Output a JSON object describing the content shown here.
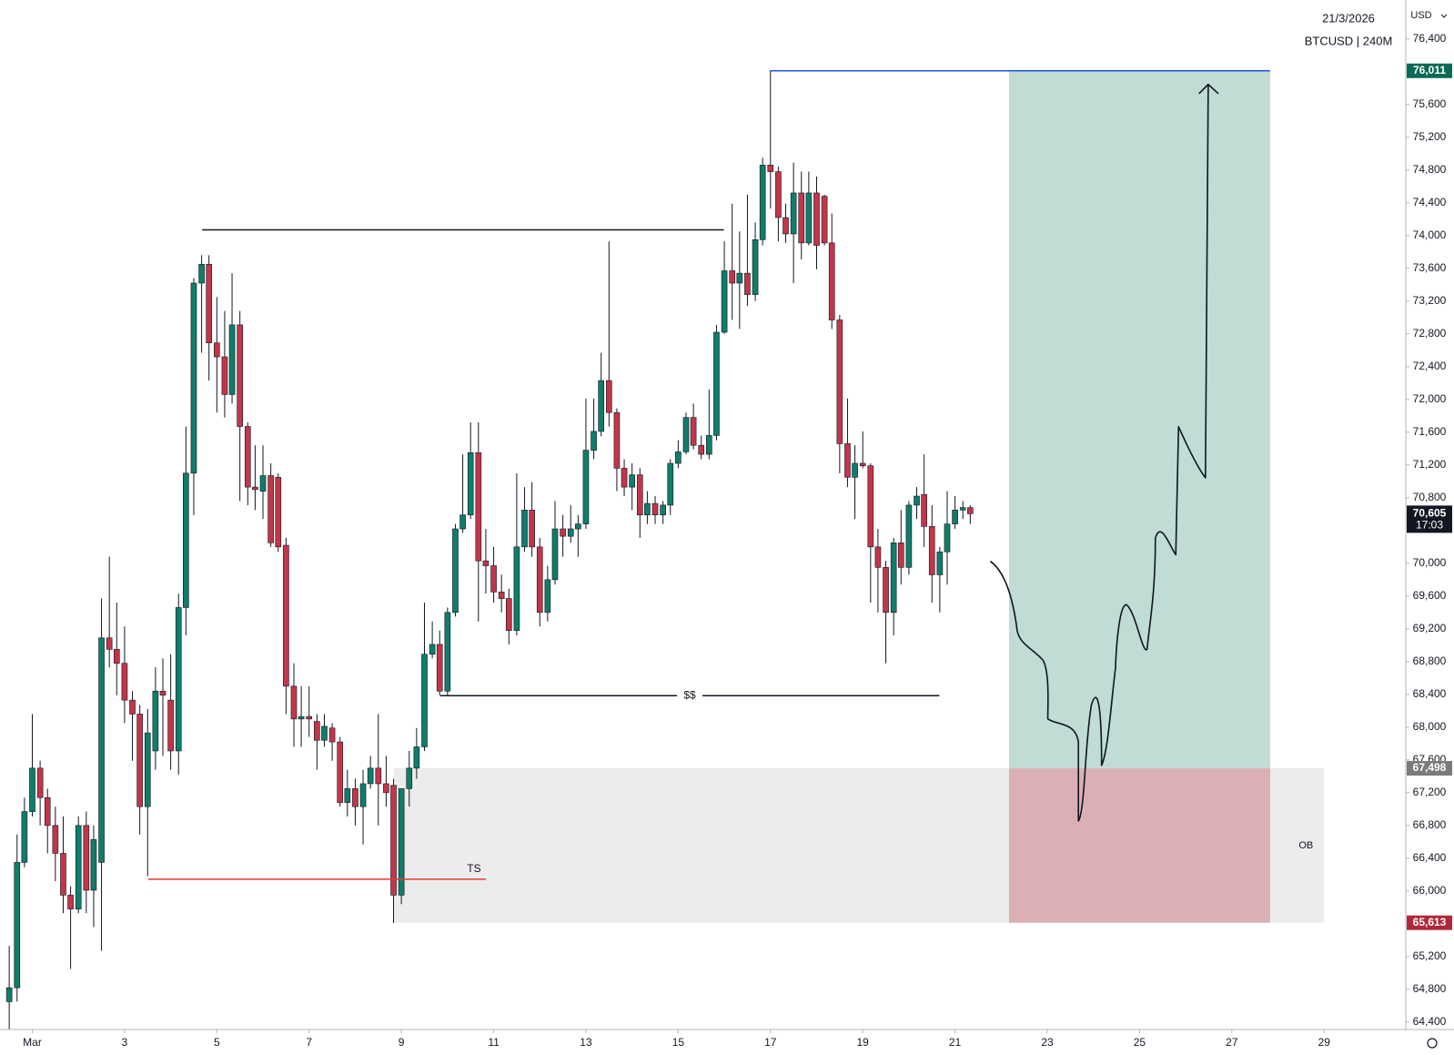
{
  "chart_data": {
    "type": "candlestick",
    "date_label": "21/3/2026",
    "symbol_label": "BTCUSD | 240M",
    "currency": "USD",
    "up_color": "#0f7d6a",
    "down_color": "#c2364a",
    "x": [
      0.5,
      0.67,
      0.83,
      1,
      1.17,
      1.33,
      1.5,
      1.67,
      1.83,
      2,
      2.17,
      2.33,
      2.5,
      2.67,
      2.83,
      3,
      3.17,
      3.33,
      3.5,
      3.67,
      3.83,
      4,
      4.17,
      4.33,
      4.5,
      4.67,
      4.83,
      5,
      5.17,
      5.33,
      5.5,
      5.67,
      5.83,
      6,
      6.17,
      6.33,
      6.5,
      6.67,
      6.83,
      7,
      7.17,
      7.33,
      7.5,
      7.67,
      7.83,
      8,
      8.17,
      8.33,
      8.5,
      8.67,
      8.83,
      9,
      9.17,
      9.33,
      9.5,
      9.67,
      9.83,
      10,
      10.17,
      10.33,
      10.5,
      10.67,
      10.83,
      11,
      11.17,
      11.33,
      11.5,
      11.67,
      11.83,
      12,
      12.17,
      12.33,
      12.5,
      12.67,
      12.83,
      13,
      13.17,
      13.33,
      13.5,
      13.67,
      13.83,
      14,
      14.17,
      14.33,
      14.5,
      14.67,
      14.83,
      15,
      15.17,
      15.33,
      15.5,
      15.67,
      15.83,
      16,
      16.17,
      16.33,
      16.5,
      16.67,
      16.83,
      17,
      17.17,
      17.33,
      17.5,
      17.67,
      17.83,
      18,
      18.17,
      18.33,
      18.5,
      18.67,
      18.83,
      19,
      19.17,
      19.33,
      19.5,
      19.67,
      19.83,
      20,
      20.17,
      20.33,
      20.5,
      20.67,
      20.83,
      21,
      21.17,
      21.33
    ],
    "open": [
      64650,
      64820,
      66350,
      66970,
      67500,
      67140,
      66800,
      66460,
      65950,
      65780,
      66800,
      66010,
      66350,
      69090,
      68950,
      68780,
      68330,
      68160,
      67030,
      67710,
      68440,
      68330,
      67710,
      69460,
      71100,
      73420,
      73650,
      72690,
      72520,
      72060,
      72910,
      71670,
      70930,
      70880,
      71070,
      71050,
      70220,
      68500,
      68100,
      68130,
      68070,
      67840,
      67990,
      67820,
      67080,
      67250,
      67030,
      67310,
      67500,
      67310,
      67290,
      65950,
      67250,
      67500,
      67760,
      68890,
      69010,
      68440,
      69400,
      70420,
      70590,
      71350,
      70030,
      69970,
      69650,
      69570,
      69180,
      70200,
      70650,
      70200,
      69400,
      69800,
      70420,
      70330,
      70420,
      70480,
      71380,
      71610,
      72230,
      71840,
      71160,
      70930,
      71080,
      70590,
      70730,
      70590,
      70710,
      71220,
      71360,
      71780,
      71440,
      71330,
      71560,
      72820,
      73570,
      73420,
      73540,
      73280,
      73950,
      74860,
      74780,
      74220,
      74020,
      74520,
      73910,
      74520,
      74480,
      73910,
      72970,
      71460,
      71050,
      71220,
      71190,
      70200,
      69950,
      69400,
      70250,
      69950,
      70710,
      70840,
      70450,
      69860,
      70140,
      70480,
      70650,
      70680
    ],
    "high": [
      65330,
      66690,
      67140,
      68160,
      67590,
      67250,
      67030,
      66910,
      66060,
      66910,
      66970,
      66800,
      69570,
      70080,
      69520,
      69230,
      68440,
      68270,
      68220,
      68730,
      68840,
      68890,
      69630,
      71670,
      73480,
      73760,
      73760,
      73250,
      73080,
      73540,
      73080,
      71720,
      71440,
      71440,
      71220,
      71100,
      70310,
      68780,
      68500,
      68500,
      68160,
      68160,
      68050,
      67880,
      67480,
      67370,
      67480,
      67650,
      68160,
      67650,
      67370,
      67250,
      67710,
      67990,
      69520,
      69290,
      69180,
      69460,
      70480,
      71330,
      71720,
      71720,
      70420,
      70200,
      69860,
      69690,
      71100,
      70930,
      70990,
      70310,
      69970,
      70760,
      70590,
      70710,
      70590,
      72010,
      72010,
      72570,
      73930,
      71890,
      71270,
      71220,
      71160,
      70880,
      70820,
      70760,
      71270,
      71500,
      71840,
      71950,
      71560,
      72120,
      72910,
      73930,
      74390,
      74050,
      74500,
      74160,
      74950,
      76011,
      74840,
      74390,
      74890,
      74780,
      74780,
      74720,
      74500,
      74270,
      73030,
      72010,
      71440,
      71610,
      71220,
      70420,
      70030,
      70310,
      70650,
      70760,
      70930,
      71330,
      70710,
      70200,
      70880,
      70820,
      70760,
      70710
    ],
    "low": [
      64310,
      64650,
      66290,
      66910,
      66800,
      66460,
      66120,
      65730,
      65050,
      65730,
      65730,
      65560,
      65270,
      68730,
      68390,
      68050,
      67590,
      66690,
      66180,
      67480,
      67650,
      67480,
      67420,
      69120,
      70590,
      72570,
      72230,
      71840,
      71780,
      71950,
      70760,
      70710,
      70650,
      70540,
      70200,
      70140,
      68160,
      67760,
      67760,
      67880,
      67480,
      67760,
      67590,
      67030,
      66910,
      66800,
      66570,
      67250,
      66800,
      67030,
      65610,
      65840,
      67030,
      67370,
      67710,
      68840,
      68390,
      68390,
      69350,
      70370,
      70540,
      69290,
      69630,
      69520,
      69400,
      69010,
      69120,
      70140,
      70080,
      69230,
      69290,
      69740,
      70080,
      70250,
      70080,
      70420,
      71270,
      71550,
      71670,
      70880,
      70820,
      70650,
      70310,
      70480,
      70480,
      70480,
      70590,
      71160,
      71330,
      71390,
      71270,
      71270,
      71500,
      72800,
      72970,
      72860,
      73140,
      73200,
      73880,
      74330,
      73930,
      73910,
      73420,
      73710,
      73880,
      73590,
      73880,
      72860,
      71100,
      70930,
      70540,
      71160,
      69520,
      69400,
      68780,
      69120,
      69740,
      69860,
      70540,
      70200,
      69520,
      69400,
      69740,
      70420,
      70540,
      70480
    ],
    "close": [
      64820,
      66350,
      66970,
      67500,
      67140,
      66800,
      66460,
      65950,
      65780,
      66800,
      66010,
      66630,
      69090,
      68950,
      68780,
      68330,
      68160,
      67030,
      67930,
      68440,
      68390,
      67710,
      69460,
      71100,
      73420,
      73650,
      72690,
      72520,
      72060,
      72910,
      71670,
      70930,
      70900,
      71070,
      70250,
      70200,
      68500,
      68100,
      68130,
      68100,
      67840,
      68010,
      67820,
      67080,
      67250,
      67030,
      67310,
      67500,
      67310,
      67200,
      65950,
      67250,
      67500,
      67760,
      68890,
      69010,
      68440,
      69400,
      70420,
      70590,
      71350,
      70030,
      69970,
      69650,
      69570,
      69180,
      70200,
      70650,
      70200,
      69400,
      69800,
      70420,
      70330,
      70420,
      70480,
      71380,
      71610,
      72230,
      71840,
      71160,
      70930,
      71080,
      70590,
      70730,
      70590,
      70710,
      71220,
      71360,
      71780,
      71440,
      71330,
      71560,
      72820,
      73570,
      73420,
      73540,
      73280,
      73950,
      74860,
      74780,
      74220,
      74020,
      74520,
      73910,
      74520,
      73880,
      73910,
      72970,
      71460,
      71050,
      71220,
      71190,
      70200,
      69950,
      69400,
      70250,
      69950,
      70710,
      70820,
      70450,
      69860,
      70140,
      70480,
      70650,
      70680,
      70605
    ],
    "xlim": [
      0.3,
      30.77
    ],
    "xticks": [
      {
        "value": 1,
        "label": "Mar"
      },
      3,
      5,
      7,
      9,
      11,
      13,
      15,
      17,
      19,
      21,
      23,
      25,
      27,
      29
    ],
    "ylim": [
      64310,
      76875
    ],
    "yticks": [
      {
        "value": 64400,
        "label": "64,400"
      },
      {
        "value": 64800,
        "label": "64,800"
      },
      {
        "value": 65200,
        "label": "65,200"
      },
      {
        "value": 66000,
        "label": "66,000"
      },
      {
        "value": 66400,
        "label": "66,400"
      },
      {
        "value": 66800,
        "label": "66,800"
      },
      {
        "value": 67200,
        "label": "67,200"
      },
      {
        "value": 67600,
        "label": "67,600"
      },
      {
        "value": 68000,
        "label": "68,000"
      },
      {
        "value": 68400,
        "label": "68,400"
      },
      {
        "value": 68800,
        "label": "68,800"
      },
      {
        "value": 69200,
        "label": "69,200"
      },
      {
        "value": 69600,
        "label": "69,600"
      },
      {
        "value": 70000,
        "label": "70,000"
      },
      {
        "value": 70800,
        "label": "70,800"
      },
      {
        "value": 71200,
        "label": "71,200"
      },
      {
        "value": 71600,
        "label": "71,600"
      },
      {
        "value": 72000,
        "label": "72,000"
      },
      {
        "value": 72400,
        "label": "72,400"
      },
      {
        "value": 72800,
        "label": "72,800"
      },
      {
        "value": 73200,
        "label": "73,200"
      },
      {
        "value": 73600,
        "label": "73,600"
      },
      {
        "value": 74000,
        "label": "74,000"
      },
      {
        "value": 74400,
        "label": "74,400"
      },
      {
        "value": 74800,
        "label": "74,800"
      },
      {
        "value": 75200,
        "label": "75,200"
      },
      {
        "value": 75600,
        "label": "75,600"
      },
      {
        "value": 76400,
        "label": "76,400"
      }
    ],
    "levels": [
      {
        "color": "#131722",
        "y": 74070,
        "x": [
          4.68,
          15.99
        ]
      },
      {
        "color": "#1e53e5",
        "y": 76011,
        "x": [
          16.99,
          27.83
        ]
      },
      {
        "color": "#e53935",
        "y": 66145,
        "x": [
          3.51,
          10.83
        ],
        "label": "TS"
      },
      {
        "color": "#131722",
        "y": 68385,
        "x": [
          9.84,
          20.66
        ],
        "label": "$$"
      }
    ],
    "zone": {
      "label": "OB",
      "top": 67498,
      "bottom": 65613,
      "x": [
        8.84,
        29.0
      ],
      "color": "#ececec"
    },
    "position": {
      "x": [
        22.17,
        27.83
      ],
      "target": 76011,
      "entry": 67498,
      "stop": 65613,
      "profit_color": "#c0dcd5",
      "loss_color": "#dbb0b5"
    },
    "price_tags": [
      {
        "value": 76011,
        "label": "76,011",
        "color": "#0a6a55"
      },
      {
        "value": 67498,
        "label": "67,498",
        "color": "#7b7b7b"
      },
      {
        "value": 65613,
        "label": "65,613",
        "color": "#b2283a"
      }
    ],
    "last_price": {
      "value": 70605,
      "label": "70,605",
      "countdown": "17:03",
      "color": "#131722"
    }
  }
}
